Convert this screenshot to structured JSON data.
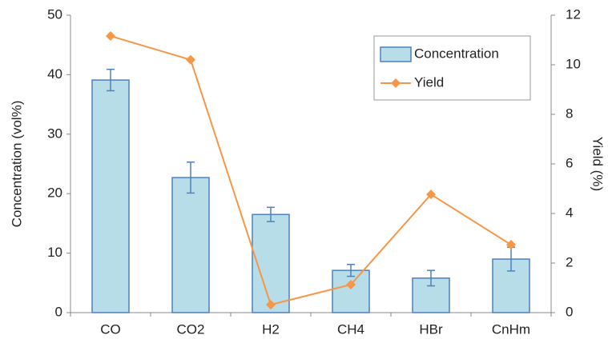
{
  "chart_data": {
    "type": "bar",
    "categories": [
      "CO",
      "CO2",
      "H2",
      "CH4",
      "HBr",
      "CnHm"
    ],
    "y_label": "Concentration (vol%)",
    "y2_label": "Yield (%)",
    "ylim": [
      0,
      50
    ],
    "yticks": [
      0,
      10,
      20,
      30,
      40,
      50
    ],
    "y2lim": [
      0,
      12
    ],
    "y2ticks": [
      0,
      2,
      4,
      6,
      8,
      10,
      12
    ],
    "grid": false,
    "legend": "upper right",
    "series": [
      {
        "name": "Concentration",
        "type": "bar",
        "color": "#b7dde8",
        "edge_color": "#4f81bd",
        "values": [
          39.1,
          22.7,
          16.5,
          7.1,
          5.8,
          9.0
        ],
        "errors": [
          1.8,
          2.6,
          1.2,
          1.0,
          1.3,
          2.0
        ]
      },
      {
        "name": "Yield",
        "type": "line",
        "axis": "y2",
        "color": "#f79646",
        "values": [
          11.16,
          10.2,
          0.32,
          1.13,
          4.77,
          2.74
        ]
      }
    ]
  }
}
